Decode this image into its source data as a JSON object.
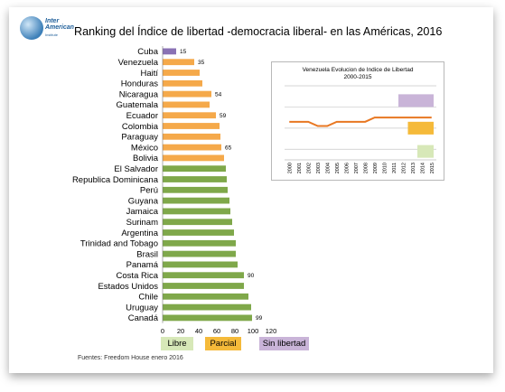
{
  "title": "Ranking del Índice de libertad  -democracia liberal- en las Américas, 2016",
  "logo": {
    "line1": "Inter",
    "line2": "American",
    "line3": "Institute"
  },
  "source": "Fuentes: Freedom House enero 2016",
  "colors": {
    "libre": "#7fa84a",
    "parcial": "#f5a94a",
    "sin_libertad": "#8a72b4",
    "inset_line": "#e87722"
  },
  "legend": [
    {
      "label": "Libre",
      "color": "#d7e8b8"
    },
    {
      "label": "Parcial",
      "color": "#f5ba3a"
    },
    {
      "label": "Sin libertad",
      "color": "#c9b4d8"
    }
  ],
  "chart_data": [
    {
      "type": "bar",
      "orientation": "horizontal",
      "title": "Ranking del Índice de libertad  -democracia liberal- en las Américas, 2016",
      "categories": [
        "Cuba",
        "Venezuela",
        "Haití",
        "Honduras",
        "Nicaragua",
        "Guatemala",
        "Ecuador",
        "Colombia",
        "Paraguay",
        "México",
        "Bolivia",
        "El Salvador",
        "Republica Dominicana",
        "Perú",
        "Guyana",
        "Jamaica",
        "Surinam",
        "Argentina",
        "Trinidad and Tobago",
        "Brasil",
        "Panamá",
        "Costa Rica",
        "Estados Unidos",
        "Chile",
        "Uruguay",
        "Canadá"
      ],
      "values": [
        15,
        35,
        41,
        44,
        54,
        52,
        59,
        63,
        64,
        65,
        68,
        70,
        71,
        72,
        74,
        75,
        77,
        79,
        81,
        81,
        83,
        90,
        90,
        95,
        98,
        99
      ],
      "status": [
        "sin_libertad",
        "parcial",
        "parcial",
        "parcial",
        "parcial",
        "parcial",
        "parcial",
        "parcial",
        "parcial",
        "parcial",
        "parcial",
        "libre",
        "libre",
        "libre",
        "libre",
        "libre",
        "libre",
        "libre",
        "libre",
        "libre",
        "libre",
        "libre",
        "libre",
        "libre",
        "libre",
        "libre"
      ],
      "data_labels": {
        "Cuba": "15",
        "Venezuela": "35",
        "Nicaragua": "54",
        "Ecuador": "59",
        "México": "65",
        "Costa Rica": "90",
        "Canadá": "99"
      },
      "x_ticks": [
        "0",
        "20",
        "40",
        "60",
        "80",
        "100",
        "120"
      ],
      "xlim": [
        0,
        120
      ],
      "legend": [
        "Libre",
        "Parcial",
        "Sin libertad"
      ],
      "legend_position": "bottom"
    },
    {
      "type": "line",
      "title": "Venezuela Evolucion de Indice de Libertad",
      "subtitle": "2000-2015",
      "x": [
        "2000",
        "2001",
        "2002",
        "2003",
        "2004",
        "2005",
        "2006",
        "2007",
        "2008",
        "2009",
        "2010",
        "2011",
        "2012",
        "2013",
        "2014",
        "2015"
      ],
      "values": [
        46,
        46,
        46,
        42,
        42,
        46,
        46,
        46,
        46,
        50,
        50,
        50,
        50,
        50,
        50,
        50
      ],
      "ylim": [
        10,
        80
      ],
      "bands": [
        {
          "status": "sin_libertad",
          "range": [
            60,
            72
          ]
        },
        {
          "status": "parcial",
          "range": [
            34,
            46
          ]
        },
        {
          "status": "libre",
          "range": [
            12,
            24
          ]
        }
      ],
      "grid": true
    }
  ]
}
